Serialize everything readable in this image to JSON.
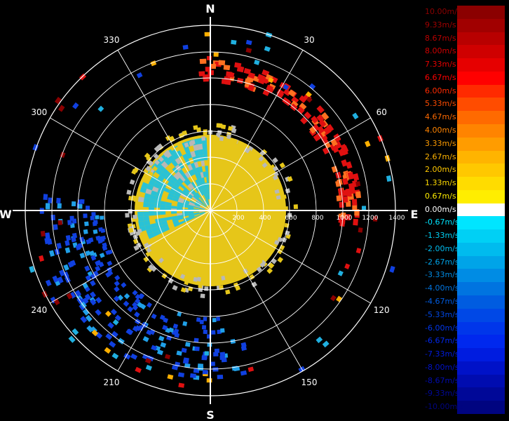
{
  "compass": {
    "north": "N",
    "south": "S",
    "east": "E",
    "west": "W"
  },
  "azimuth_labels": [
    {
      "deg": 30,
      "text": "30"
    },
    {
      "deg": 60,
      "text": "60"
    },
    {
      "deg": 120,
      "text": "120"
    },
    {
      "deg": 150,
      "text": "150"
    },
    {
      "deg": 210,
      "text": "210"
    },
    {
      "deg": 240,
      "text": "240"
    },
    {
      "deg": 300,
      "text": "300"
    },
    {
      "deg": 330,
      "text": "330"
    }
  ],
  "range_labels": [
    "200",
    "400",
    "600",
    "800",
    "1000",
    "1200",
    "1400"
  ],
  "legend": {
    "items": [
      {
        "label": "10.00m/s",
        "color": "#8b0000"
      },
      {
        "label": "9.33m/s",
        "color": "#a10000"
      },
      {
        "label": "8.67m/s",
        "color": "#b80000"
      },
      {
        "label": "8.00m/s",
        "color": "#cf0000"
      },
      {
        "label": "7.33m/s",
        "color": "#e60000"
      },
      {
        "label": "6.67m/s",
        "color": "#ff0000"
      },
      {
        "label": "6.00m/s",
        "color": "#ff2a00"
      },
      {
        "label": "5.33m/s",
        "color": "#ff4c00"
      },
      {
        "label": "4.67m/s",
        "color": "#ff6a00"
      },
      {
        "label": "4.00m/s",
        "color": "#ff8400"
      },
      {
        "label": "3.33m/s",
        "color": "#ff9c00"
      },
      {
        "label": "2.67m/s",
        "color": "#ffb400"
      },
      {
        "label": "2.00m/s",
        "color": "#ffc800"
      },
      {
        "label": "1.33m/s",
        "color": "#ffdc00"
      },
      {
        "label": "0.67m/s",
        "color": "#ffee00"
      },
      {
        "label": "0.00m/s",
        "color": "#ffffff"
      },
      {
        "label": "-0.67m/s",
        "color": "#00e5ff"
      },
      {
        "label": "-1.33m/s",
        "color": "#00d0f5"
      },
      {
        "label": "-2.00m/s",
        "color": "#00bbee"
      },
      {
        "label": "-2.67m/s",
        "color": "#00a4e8"
      },
      {
        "label": "-3.33m/s",
        "color": "#008ce4"
      },
      {
        "label": "-4.00m/s",
        "color": "#0074e0"
      },
      {
        "label": "-4.67m/s",
        "color": "#005ce0"
      },
      {
        "label": "-5.33m/s",
        "color": "#0048e6"
      },
      {
        "label": "-6.00m/s",
        "color": "#0036ea"
      },
      {
        "label": "-6.67m/s",
        "color": "#0028ee"
      },
      {
        "label": "-7.33m/s",
        "color": "#001ce0"
      },
      {
        "label": "-8.00m/s",
        "color": "#0012c8"
      },
      {
        "label": "-8.67m/s",
        "color": "#000cb0"
      },
      {
        "label": "-9.33m/s",
        "color": "#000898"
      },
      {
        "label": "-10.00m/s",
        "color": "#000480"
      }
    ]
  },
  "colors": {
    "background": "#000000",
    "grid": "#ffffff",
    "center_warm": "#e6c619",
    "center_cold": "#29c2d6",
    "center_gray": "#b8b8b8",
    "ring_red": "#e01010",
    "ring_blue": "#1040e0"
  }
}
